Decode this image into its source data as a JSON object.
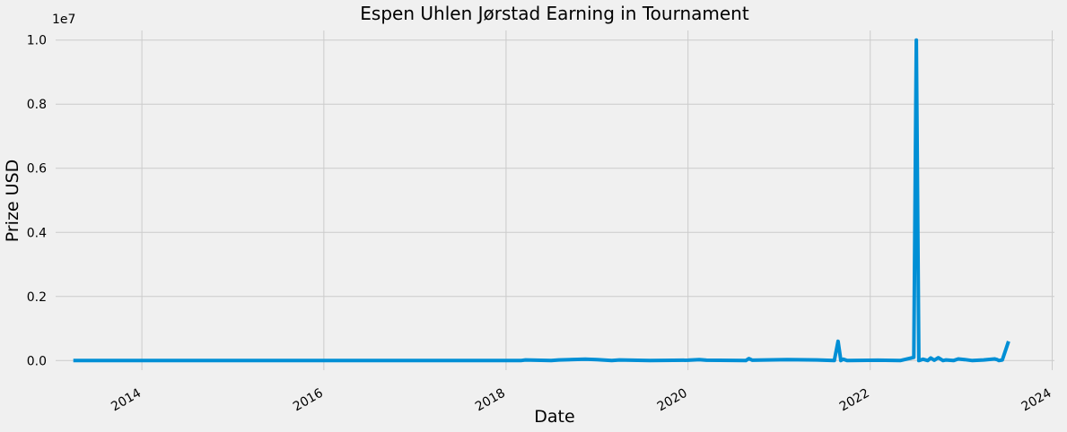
{
  "chart_data": {
    "type": "line",
    "title": "Espen Uhlen Jørstad Earning in Tournament",
    "xlabel": "Date",
    "ylabel": "Prize USD",
    "y_multiplier_label": "1e7",
    "xlim": [
      "2013-01-20",
      "2024-01-10"
    ],
    "ylim": [
      -0.03,
      1.03
    ],
    "x_ticks": [
      "2014-01-01",
      "2016-01-01",
      "2018-01-01",
      "2020-01-01",
      "2022-01-01",
      "2024-01-01"
    ],
    "x_tick_labels": [
      "2014",
      "2016",
      "2018",
      "2020",
      "2022",
      "2024"
    ],
    "y_ticks": [
      0.0,
      0.2,
      0.4,
      0.6,
      0.8,
      1.0
    ],
    "y_tick_labels": [
      "0.0",
      "0.2",
      "0.4",
      "0.6",
      "0.8",
      "1.0"
    ],
    "grid": true,
    "line_color": "#008fd5",
    "series": [
      {
        "x": [
          "2013-04-01",
          "2014-06-01",
          "2016-01-01",
          "2017-06-01",
          "2018-03-01",
          "2018-03-20",
          "2018-07-01",
          "2018-08-01",
          "2018-11-15",
          "2019-01-01",
          "2019-03-01",
          "2019-04-01",
          "2019-08-01",
          "2020-01-01",
          "2020-02-15",
          "2020-03-15",
          "2020-08-20",
          "2020-09-01",
          "2020-09-15",
          "2021-02-01",
          "2021-06-01",
          "2021-08-10",
          "2021-08-25",
          "2021-09-05",
          "2021-09-15",
          "2021-10-01",
          "2022-02-01",
          "2022-05-01",
          "2022-06-25",
          "2022-07-05",
          "2022-07-15",
          "2022-08-01",
          "2022-08-20",
          "2022-09-01",
          "2022-09-15",
          "2022-10-01",
          "2022-10-20",
          "2022-11-01",
          "2022-12-01",
          "2022-12-20",
          "2023-01-15",
          "2023-02-15",
          "2023-04-01",
          "2023-05-15",
          "2023-05-25",
          "2023-06-01",
          "2023-06-15",
          "2023-07-10"
        ],
        "y": [
          0.0,
          0.0,
          0.0,
          0.0,
          0.0,
          0.002,
          0.0,
          0.002,
          0.004,
          0.003,
          0.0,
          0.002,
          0.0,
          0.001,
          0.003,
          0.001,
          0.0,
          0.006,
          0.001,
          0.003,
          0.002,
          0.0,
          0.06,
          0.0,
          0.004,
          0.0,
          0.001,
          0.0,
          0.01,
          1.0,
          0.0,
          0.004,
          0.0,
          0.008,
          0.001,
          0.009,
          0.0,
          0.002,
          0.0,
          0.005,
          0.003,
          0.0,
          0.002,
          0.005,
          0.003,
          0.0,
          0.002,
          0.06
        ]
      }
    ]
  }
}
